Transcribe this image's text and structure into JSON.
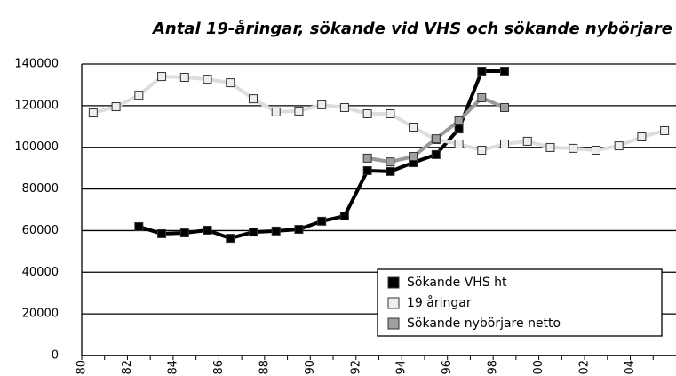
{
  "chart_data": {
    "type": "line",
    "title": "Antal 19-åringar, sökande vid VHS och sökande nybörjare",
    "categories": [
      "80",
      null,
      "82",
      null,
      "84",
      null,
      "86",
      null,
      "88",
      null,
      "90",
      null,
      "92",
      null,
      "94",
      null,
      "96",
      null,
      "98",
      null,
      "00",
      null,
      "02",
      null,
      "04",
      null
    ],
    "series": [
      {
        "name": "Sökande VHS ht",
        "color": "#000000",
        "marker_color": "#000000",
        "values": [
          null,
          null,
          61900,
          58500,
          58900,
          60200,
          56300,
          59300,
          59800,
          60600,
          64500,
          67000,
          88800,
          88400,
          92600,
          96500,
          108800,
          136600,
          136600,
          null,
          null,
          null,
          null,
          null,
          null,
          null
        ]
      },
      {
        "name": "19 åringar",
        "color": "#dddddd",
        "marker_color": "#eeeeee",
        "values": [
          116500,
          119500,
          125000,
          134000,
          133600,
          132700,
          131000,
          123300,
          117000,
          117400,
          120400,
          119100,
          116100,
          116100,
          109700,
          103700,
          101600,
          98600,
          101600,
          102900,
          99900,
          99500,
          98600,
          100700,
          105000,
          108000
        ]
      },
      {
        "name": "Sökande nybörjare netto",
        "color": "#999999",
        "marker_color": "#a0a0a0",
        "values": [
          null,
          null,
          null,
          null,
          null,
          null,
          null,
          null,
          null,
          null,
          null,
          null,
          94800,
          93000,
          95600,
          104100,
          112700,
          123800,
          119100,
          null,
          null,
          null,
          null,
          null,
          null,
          null
        ]
      }
    ],
    "ylim": [
      0,
      140000
    ],
    "yticks": [
      0,
      20000,
      40000,
      60000,
      80000,
      100000,
      120000,
      140000
    ],
    "grid": true,
    "legend": "lower right"
  }
}
